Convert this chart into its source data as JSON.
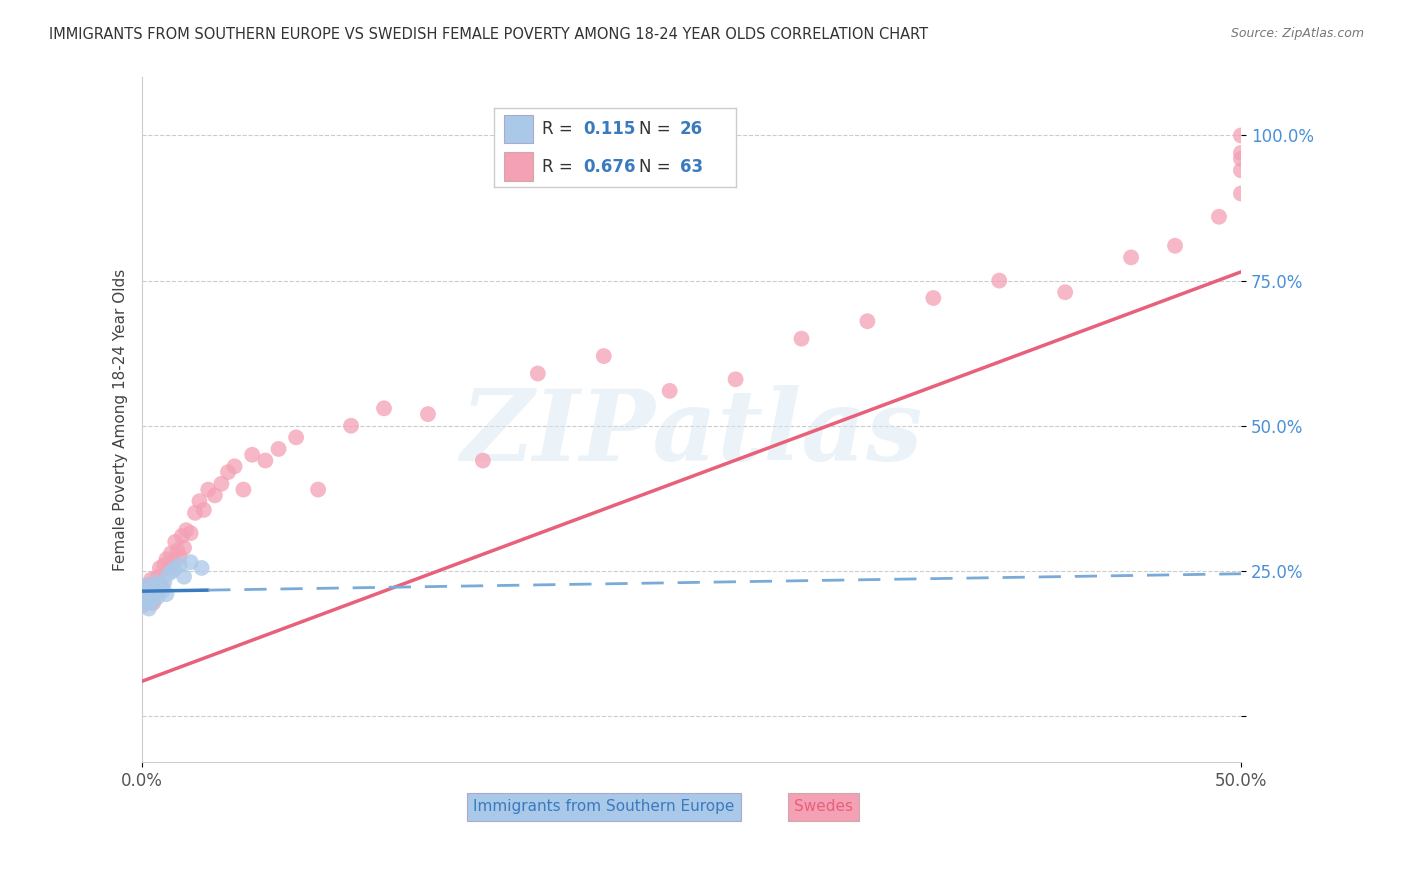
{
  "title": "IMMIGRANTS FROM SOUTHERN EUROPE VS SWEDISH FEMALE POVERTY AMONG 18-24 YEAR OLDS CORRELATION CHART",
  "source": "Source: ZipAtlas.com",
  "ylabel": "Female Poverty Among 18-24 Year Olds",
  "xlim": [
    0.0,
    0.5
  ],
  "ylim": [
    -0.08,
    1.1
  ],
  "r_blue": 0.115,
  "n_blue": 26,
  "r_pink": 0.676,
  "n_pink": 63,
  "blue_color": "#aac8e8",
  "pink_color": "#f4a0b5",
  "blue_line_color": "#3a7abf",
  "pink_line_color": "#e8607a",
  "blue_line_dash": "#7aaad8",
  "watermark_text": "ZIPatlas",
  "legend_blue_label": "Immigrants from Southern Europe",
  "legend_pink_label": "Swedes",
  "blue_scatter_x": [
    0.0,
    0.001,
    0.001,
    0.002,
    0.002,
    0.003,
    0.003,
    0.004,
    0.004,
    0.005,
    0.005,
    0.006,
    0.006,
    0.007,
    0.007,
    0.008,
    0.009,
    0.01,
    0.011,
    0.012,
    0.014,
    0.015,
    0.017,
    0.019,
    0.022,
    0.027
  ],
  "blue_scatter_y": [
    0.205,
    0.215,
    0.195,
    0.225,
    0.2,
    0.21,
    0.185,
    0.22,
    0.195,
    0.215,
    0.2,
    0.23,
    0.21,
    0.205,
    0.22,
    0.225,
    0.215,
    0.23,
    0.21,
    0.245,
    0.25,
    0.255,
    0.26,
    0.24,
    0.265,
    0.255
  ],
  "pink_scatter_x": [
    0.0,
    0.001,
    0.001,
    0.002,
    0.002,
    0.003,
    0.003,
    0.004,
    0.004,
    0.005,
    0.005,
    0.006,
    0.007,
    0.007,
    0.008,
    0.009,
    0.01,
    0.011,
    0.012,
    0.013,
    0.014,
    0.015,
    0.016,
    0.017,
    0.018,
    0.019,
    0.02,
    0.022,
    0.024,
    0.026,
    0.028,
    0.03,
    0.033,
    0.036,
    0.039,
    0.042,
    0.046,
    0.05,
    0.056,
    0.062,
    0.07,
    0.08,
    0.095,
    0.11,
    0.13,
    0.155,
    0.18,
    0.21,
    0.24,
    0.27,
    0.3,
    0.33,
    0.36,
    0.39,
    0.42,
    0.45,
    0.47,
    0.49,
    0.5,
    0.5,
    0.5,
    0.5,
    0.5
  ],
  "pink_scatter_y": [
    0.19,
    0.21,
    0.2,
    0.22,
    0.215,
    0.225,
    0.2,
    0.235,
    0.21,
    0.2,
    0.195,
    0.23,
    0.215,
    0.24,
    0.255,
    0.225,
    0.26,
    0.27,
    0.255,
    0.28,
    0.265,
    0.3,
    0.285,
    0.275,
    0.31,
    0.29,
    0.32,
    0.315,
    0.35,
    0.37,
    0.355,
    0.39,
    0.38,
    0.4,
    0.42,
    0.43,
    0.39,
    0.45,
    0.44,
    0.46,
    0.48,
    0.39,
    0.5,
    0.53,
    0.52,
    0.44,
    0.59,
    0.62,
    0.56,
    0.58,
    0.65,
    0.68,
    0.72,
    0.75,
    0.73,
    0.79,
    0.81,
    0.86,
    0.9,
    0.94,
    0.96,
    0.97,
    1.0
  ],
  "blue_line_x0": 0.0,
  "blue_line_x1": 0.5,
  "blue_line_y0": 0.215,
  "blue_line_y1": 0.245,
  "pink_line_x0": 0.0,
  "pink_line_x1": 0.5,
  "pink_line_y0": 0.06,
  "pink_line_y1": 0.765
}
